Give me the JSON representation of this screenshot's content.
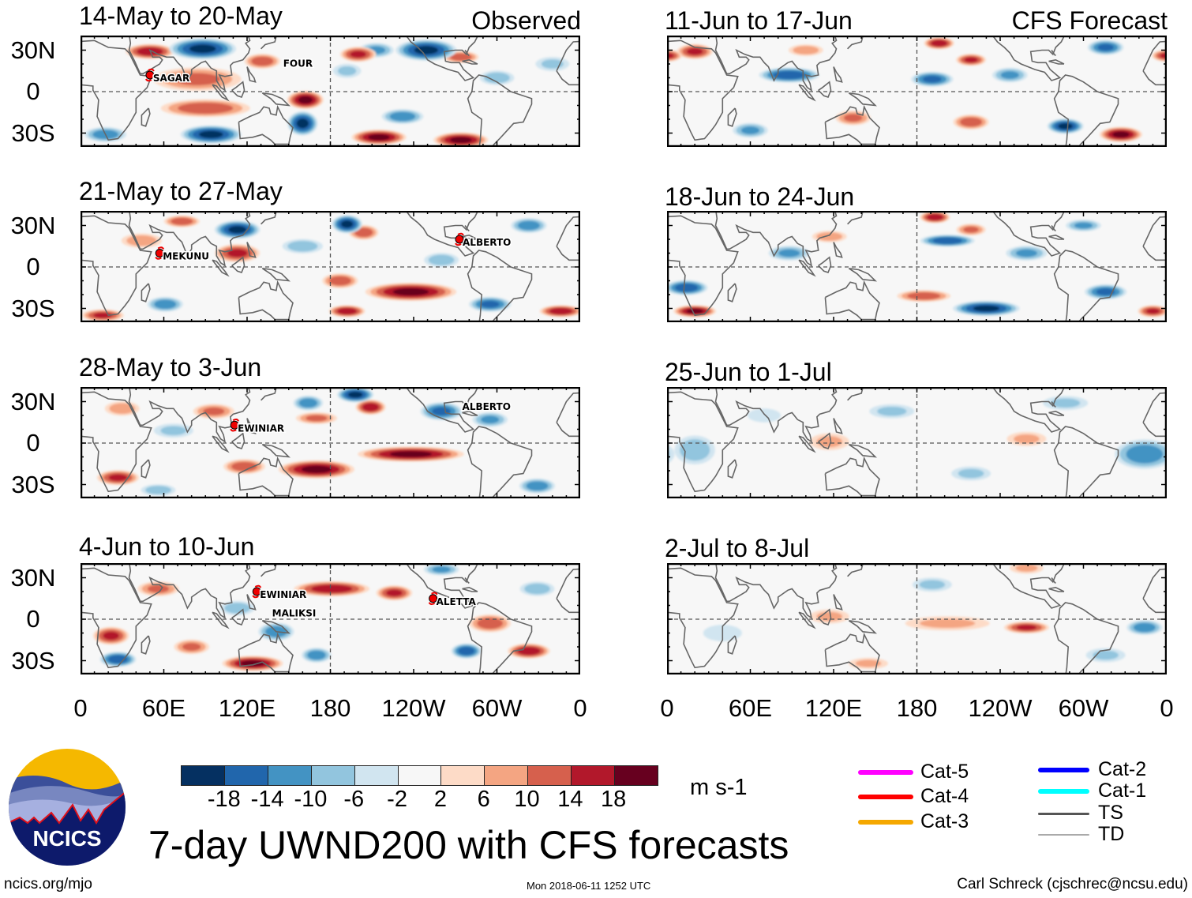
{
  "title": "7-day UWND200 with CFS forecasts",
  "footer": {
    "site": "ncics.org/mjo",
    "timestamp": "Mon 2018-06-11 1252 UTC",
    "author": "Carl Schreck (cjschrec@ncsu.edu)"
  },
  "logo": {
    "text": "NCICS"
  },
  "axes": {
    "lat_labels": [
      "30N",
      "0",
      "30S"
    ],
    "lon_labels": [
      "0",
      "60E",
      "120E",
      "180",
      "120W",
      "60W",
      "0"
    ]
  },
  "column_labels": {
    "observed": "Observed",
    "forecast": "CFS Forecast"
  },
  "colorbar": {
    "units": "m s-1",
    "ticks": [
      "-18",
      "-14",
      "-10",
      "-6",
      "-2",
      "2",
      "6",
      "10",
      "14",
      "18"
    ],
    "colors": [
      "#053061",
      "#2166ac",
      "#4393c3",
      "#92c5de",
      "#d1e5f0",
      "#f7f7f7",
      "#fddbc7",
      "#f4a582",
      "#d6604d",
      "#b2182b",
      "#67001f"
    ]
  },
  "legend": [
    {
      "label": "Cat-5",
      "color": "#ff00ff"
    },
    {
      "label": "Cat-4",
      "color": "#ff0000"
    },
    {
      "label": "Cat-3",
      "color": "#f5a800"
    },
    {
      "label": "Cat-2",
      "color": "#0000ff"
    },
    {
      "label": "Cat-1",
      "color": "#00ffff"
    },
    {
      "label": "TS",
      "color": "#555555"
    },
    {
      "label": "TD",
      "color": "#aaaaaa"
    }
  ],
  "chart_data": {
    "type": "heatmap",
    "variable": "200-hPa zonal wind anomaly",
    "units": "m s-1",
    "lon_range": [
      0,
      360
    ],
    "lat_range": [
      -40,
      40
    ],
    "blob_format": [
      "lon",
      "lat",
      "lon_halfwidth_deg",
      "lat_halfwidth_deg",
      "peak_value"
    ],
    "panels": [
      {
        "title": "14-May to 20-May",
        "kind": "observed",
        "blobs": [
          [
            50,
            29,
            16,
            5,
            16
          ],
          [
            88,
            31,
            22,
            7,
            -18
          ],
          [
            249,
            30,
            20,
            7,
            -18
          ],
          [
            213,
            30,
            12,
            5,
            -10
          ],
          [
            200,
            27,
            12,
            5,
            14
          ],
          [
            274,
            25,
            12,
            4,
            12
          ],
          [
            84,
            9,
            30,
            8,
            10
          ],
          [
            90,
            -12,
            30,
            6,
            12
          ],
          [
            131,
            22,
            12,
            5,
            12
          ],
          [
            162,
            -6,
            12,
            6,
            18
          ],
          [
            160,
            -23,
            10,
            8,
            -18
          ],
          [
            94,
            -31,
            20,
            6,
            -18
          ],
          [
            215,
            -33,
            18,
            5,
            18
          ],
          [
            274,
            -35,
            18,
            5,
            18
          ],
          [
            232,
            -18,
            14,
            5,
            -12
          ],
          [
            18,
            -31,
            14,
            5,
            -12
          ],
          [
            192,
            15,
            10,
            5,
            -6
          ],
          [
            300,
            10,
            12,
            5,
            -8
          ],
          [
            340,
            20,
            12,
            5,
            -6
          ]
        ],
        "storms": [
          {
            "name": "SAGAR",
            "lon": 50,
            "lat": 12,
            "marker": true
          },
          {
            "name": "FOUR",
            "lon": 146,
            "lat": 18,
            "marker": false
          }
        ]
      },
      {
        "title": "21-May to 27-May",
        "kind": "observed",
        "blobs": [
          [
            192,
            31,
            10,
            6,
            -18
          ],
          [
            113,
            27,
            15,
            6,
            -18
          ],
          [
            73,
            33,
            12,
            4,
            12
          ],
          [
            204,
            25,
            10,
            5,
            12
          ],
          [
            113,
            10,
            15,
            6,
            14
          ],
          [
            238,
            -18,
            30,
            6,
            18
          ],
          [
            187,
            -10,
            12,
            5,
            12
          ],
          [
            192,
            -32,
            12,
            4,
            16
          ],
          [
            346,
            -32,
            14,
            4,
            16
          ],
          [
            16,
            -35,
            14,
            4,
            14
          ],
          [
            61,
            -27,
            12,
            5,
            -12
          ],
          [
            295,
            -27,
            14,
            5,
            -14
          ],
          [
            323,
            30,
            12,
            5,
            -12
          ],
          [
            260,
            5,
            12,
            5,
            -8
          ],
          [
            44,
            19,
            14,
            5,
            8
          ],
          [
            160,
            15,
            14,
            5,
            -8
          ]
        ],
        "storms": [
          {
            "name": "MEKUNU",
            "lon": 57,
            "lat": 10,
            "marker": true
          },
          {
            "name": "ALBERTO",
            "lon": 273,
            "lat": 20,
            "marker": true
          }
        ]
      },
      {
        "title": "28-May to 3-Jun",
        "kind": "observed",
        "blobs": [
          [
            198,
            35,
            12,
            5,
            -18
          ],
          [
            209,
            26,
            10,
            5,
            16
          ],
          [
            164,
            29,
            10,
            5,
            -12
          ],
          [
            260,
            23,
            14,
            6,
            -14
          ],
          [
            295,
            17,
            12,
            5,
            -10
          ],
          [
            96,
            23,
            14,
            5,
            10
          ],
          [
            170,
            18,
            14,
            4,
            10
          ],
          [
            238,
            -8,
            35,
            5,
            18
          ],
          [
            170,
            -19,
            25,
            6,
            18
          ],
          [
            27,
            -25,
            14,
            5,
            14
          ],
          [
            118,
            -17,
            14,
            5,
            12
          ],
          [
            329,
            -31,
            12,
            5,
            -12
          ],
          [
            56,
            -34,
            12,
            4,
            -8
          ],
          [
            67,
            9,
            14,
            5,
            -6
          ],
          [
            30,
            25,
            12,
            5,
            8
          ]
        ],
        "storms": [
          {
            "name": "EWINIAR",
            "lon": 111,
            "lat": 13,
            "marker": true
          },
          {
            "name": "ALBERTO",
            "lon": 275,
            "lat": 24,
            "marker": false
          }
        ]
      },
      {
        "title": "4-Jun to 10-Jun",
        "kind": "observed",
        "blobs": [
          [
            181,
            22,
            25,
            5,
            16
          ],
          [
            226,
            19,
            12,
            5,
            14
          ],
          [
            56,
            22,
            14,
            5,
            10
          ],
          [
            141,
            -9,
            12,
            6,
            -12
          ],
          [
            113,
            8,
            12,
            5,
            -8
          ],
          [
            124,
            -32,
            20,
            5,
            18
          ],
          [
            22,
            -12,
            12,
            6,
            14
          ],
          [
            27,
            -29,
            12,
            5,
            -16
          ],
          [
            278,
            -23,
            10,
            5,
            -16
          ],
          [
            323,
            -23,
            14,
            5,
            16
          ],
          [
            170,
            -26,
            10,
            5,
            -12
          ],
          [
            295,
            -3,
            14,
            6,
            12
          ],
          [
            260,
            36,
            12,
            4,
            -10
          ],
          [
            329,
            22,
            12,
            5,
            -8
          ],
          [
            80,
            -20,
            12,
            5,
            10
          ]
        ],
        "storms": [
          {
            "name": "EWINIAR",
            "lon": 127,
            "lat": 20,
            "marker": true
          },
          {
            "name": "MALIKSI",
            "lon": 138,
            "lat": 18,
            "marker": false
          },
          {
            "name": "ALETTA",
            "lon": 254,
            "lat": 15,
            "marker": true
          }
        ]
      },
      {
        "title": "11-Jun to 17-Jun",
        "kind": "forecast",
        "blobs": [
          [
            196,
            35,
            10,
            4,
            16
          ],
          [
            20,
            29,
            12,
            5,
            14
          ],
          [
            219,
            23,
            10,
            4,
            14
          ],
          [
            88,
            12,
            20,
            5,
            -16
          ],
          [
            191,
            9,
            14,
            5,
            -14
          ],
          [
            316,
            32,
            12,
            5,
            -14
          ],
          [
            287,
            -25,
            12,
            5,
            -18
          ],
          [
            327,
            -31,
            14,
            5,
            18
          ],
          [
            219,
            -22,
            12,
            5,
            12
          ],
          [
            134,
            -19,
            12,
            5,
            10
          ],
          [
            247,
            12,
            12,
            5,
            -10
          ],
          [
            60,
            -28,
            12,
            5,
            -10
          ],
          [
            100,
            30,
            12,
            4,
            8
          ],
          [
            360,
            26,
            10,
            4,
            14
          ]
        ],
        "storms": []
      },
      {
        "title": "18-Jun to 24-Jun",
        "kind": "forecast",
        "blobs": [
          [
            202,
            19,
            18,
            4,
            -16
          ],
          [
            193,
            36,
            10,
            4,
            16
          ],
          [
            219,
            27,
            10,
            4,
            10
          ],
          [
            230,
            -30,
            22,
            5,
            -18
          ],
          [
            185,
            -21,
            18,
            4,
            12
          ],
          [
            14,
            -15,
            14,
            5,
            -16
          ],
          [
            20,
            -32,
            14,
            4,
            18
          ],
          [
            316,
            -18,
            14,
            5,
            -14
          ],
          [
            350,
            -32,
            10,
            4,
            14
          ],
          [
            88,
            10,
            14,
            5,
            -10
          ],
          [
            259,
            10,
            14,
            5,
            -10
          ],
          [
            117,
            22,
            12,
            4,
            8
          ],
          [
            300,
            30,
            12,
            4,
            -10
          ]
        ],
        "storms": []
      },
      {
        "title": "25-Jun to 1-Jul",
        "kind": "forecast",
        "blobs": [
          [
            344,
            -8,
            20,
            10,
            -12
          ],
          [
            20,
            -5,
            14,
            10,
            -8
          ],
          [
            162,
            23,
            16,
            5,
            -6
          ],
          [
            287,
            29,
            16,
            5,
            -6
          ],
          [
            117,
            1,
            14,
            6,
            6
          ],
          [
            259,
            3,
            14,
            5,
            6
          ],
          [
            219,
            -22,
            14,
            5,
            -6
          ],
          [
            70,
            20,
            12,
            5,
            -5
          ]
        ],
        "storms": []
      },
      {
        "title": "2-Jul to 8-Jul",
        "kind": "forecast",
        "blobs": [
          [
            259,
            -6,
            15,
            4,
            14
          ],
          [
            202,
            -3,
            30,
            5,
            6
          ],
          [
            117,
            2,
            14,
            5,
            6
          ],
          [
            344,
            -6,
            12,
            5,
            -12
          ],
          [
            191,
            25,
            14,
            5,
            -6
          ],
          [
            316,
            -26,
            14,
            5,
            -6
          ],
          [
            259,
            37,
            12,
            4,
            6
          ],
          [
            145,
            -32,
            14,
            4,
            6
          ],
          [
            40,
            -10,
            14,
            6,
            -5
          ]
        ],
        "storms": []
      }
    ]
  }
}
